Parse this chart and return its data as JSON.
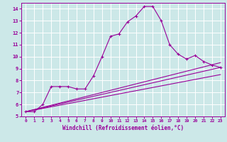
{
  "background_color": "#cce8e8",
  "grid_color": "#ffffff",
  "line_color": "#990099",
  "x_label": "Windchill (Refroidissement éolien,°C)",
  "xlim": [
    -0.5,
    23.5
  ],
  "ylim": [
    5.0,
    14.5
  ],
  "x_ticks": [
    0,
    1,
    2,
    3,
    4,
    5,
    6,
    7,
    8,
    9,
    10,
    11,
    12,
    13,
    14,
    15,
    16,
    17,
    18,
    19,
    20,
    21,
    22,
    23
  ],
  "y_ticks": [
    5,
    6,
    7,
    8,
    9,
    10,
    11,
    12,
    13,
    14
  ],
  "main_curve": {
    "x": [
      0,
      1,
      2,
      3,
      4,
      5,
      6,
      7,
      8,
      9,
      10,
      11,
      12,
      13,
      14,
      15,
      16,
      17,
      18,
      19,
      20,
      21,
      22,
      23
    ],
    "y": [
      5.4,
      5.4,
      6.0,
      7.5,
      7.5,
      7.5,
      7.3,
      7.3,
      8.4,
      10.0,
      11.7,
      11.9,
      12.9,
      13.4,
      14.2,
      14.2,
      13.0,
      11.0,
      10.2,
      9.8,
      10.1,
      9.6,
      9.3,
      9.1
    ]
  },
  "ref_lines": [
    {
      "x": [
        0,
        23
      ],
      "y": [
        5.4,
        9.1
      ]
    },
    {
      "x": [
        0,
        23
      ],
      "y": [
        5.4,
        8.5
      ]
    },
    {
      "x": [
        0,
        23
      ],
      "y": [
        5.4,
        9.5
      ]
    }
  ]
}
